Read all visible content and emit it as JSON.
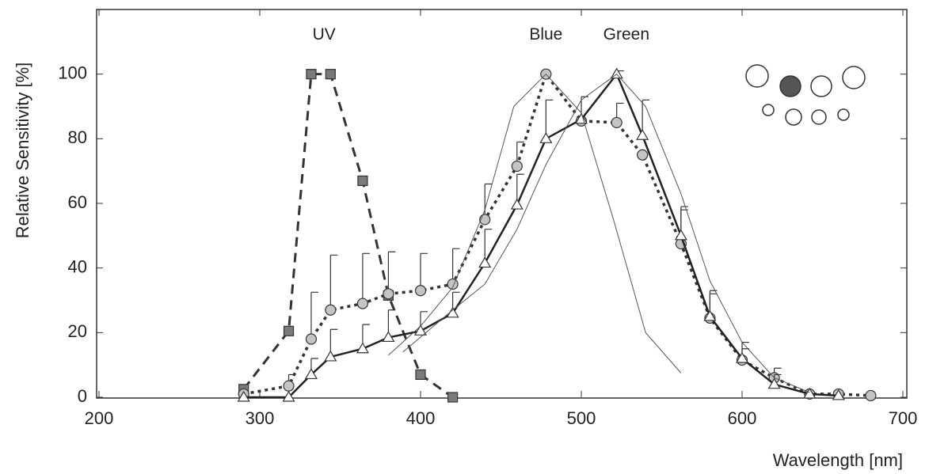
{
  "chart_data": {
    "type": "line",
    "ylabel": "Relative Sensitivity  [%]",
    "xlabel": "Wavelength  [nm]",
    "xlim": [
      200,
      700
    ],
    "xticks": [
      200,
      300,
      400,
      500,
      600,
      700
    ],
    "ylim": [
      0,
      120
    ],
    "yticks": [
      0,
      20,
      40,
      60,
      80,
      100
    ],
    "annotations": [
      {
        "text": "UV",
        "x": 340,
        "y": 112
      },
      {
        "text": "Blue",
        "x": 478,
        "y": 112
      },
      {
        "text": "Green",
        "x": 528,
        "y": 112
      }
    ],
    "series": [
      {
        "color": "#333333",
        "marker": "square",
        "marker_color": "#7a7a7a",
        "dash": "12,8",
        "width": 3,
        "x": [
          290,
          318,
          332,
          344,
          364,
          380,
          400,
          420
        ],
        "values": [
          2.5,
          20.5,
          100,
          100,
          67,
          31.5,
          7,
          0
        ]
      },
      {
        "color": "#333333",
        "marker": "circle",
        "marker_color": "#c4c4c4",
        "dash": "4,5",
        "width": 3.5,
        "x": [
          290,
          318,
          332,
          344,
          364,
          380,
          400,
          420,
          440,
          460,
          478,
          500,
          522,
          538,
          562,
          580,
          600,
          620,
          642,
          660,
          680
        ],
        "values": [
          1,
          3.5,
          18,
          27,
          29,
          32,
          33,
          35,
          55,
          71.5,
          100,
          85.5,
          85,
          75,
          47.5,
          24.5,
          11.5,
          6,
          1,
          1,
          0.5
        ],
        "errors": [
          null,
          3.5,
          14.5,
          17,
          15.5,
          13,
          11.5,
          11,
          11,
          7.5,
          null,
          7.5,
          6,
          null,
          11.5,
          8.5,
          5.5,
          3,
          null,
          null,
          null
        ]
      },
      {
        "color": "#222222",
        "marker": "triangle",
        "marker_color": "#ffffff",
        "width": 2.5,
        "x": [
          290,
          318,
          332,
          344,
          364,
          380,
          400,
          420,
          440,
          460,
          478,
          500,
          522,
          538,
          562,
          580,
          600,
          620,
          642,
          660
        ],
        "values": [
          0,
          0,
          7,
          12.5,
          15,
          18.5,
          20.5,
          26,
          41.5,
          59.5,
          80,
          86,
          100,
          81,
          50,
          25,
          12,
          4,
          1,
          0.5
        ],
        "errors": [
          null,
          null,
          5,
          8.5,
          7.5,
          8.5,
          6,
          6.5,
          10.5,
          9.5,
          12,
          null,
          1,
          11,
          8,
          7,
          3,
          3,
          null,
          null
        ]
      },
      {
        "color": "#555555",
        "width": 1,
        "x": [
          380,
          400,
          420,
          440,
          458,
          478,
          500,
          520,
          540,
          562
        ],
        "values": [
          13,
          22,
          34,
          58,
          90,
          100,
          88,
          55,
          20,
          7.5
        ]
      },
      {
        "color": "#555555",
        "width": 1,
        "x": [
          389,
          420,
          440,
          460,
          478,
          500,
          522,
          540,
          562,
          580,
          600,
          620,
          642
        ],
        "values": [
          14,
          27,
          35,
          52,
          72,
          92,
          100,
          90,
          63,
          36,
          17,
          6,
          1.5
        ]
      }
    ]
  }
}
